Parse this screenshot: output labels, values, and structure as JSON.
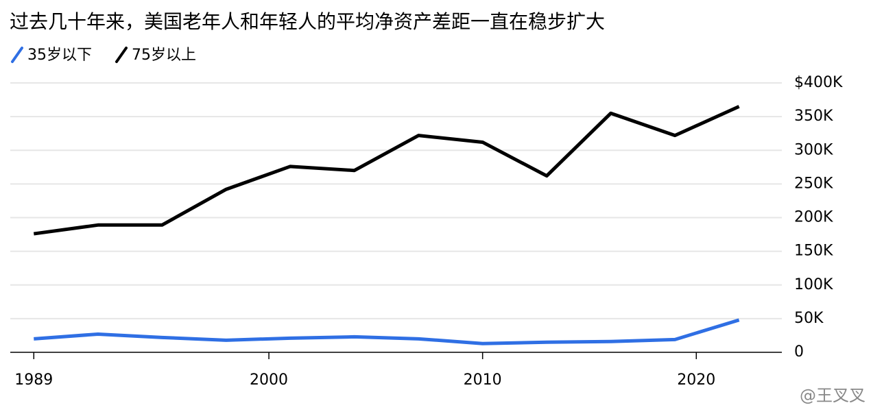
{
  "chart_data": {
    "type": "line",
    "title": "过去几十年来，美国老年人和年轻人的平均净资产差距一直在稳步扩大",
    "x": [
      1989,
      1992,
      1995,
      1998,
      2001,
      2004,
      2007,
      2010,
      2013,
      2016,
      2019,
      2022
    ],
    "series": [
      {
        "name": "35岁以下",
        "color": "#2f6fe4",
        "values": [
          20,
          27,
          22,
          18,
          21,
          23,
          20,
          13,
          15,
          16,
          19,
          48
        ]
      },
      {
        "name": "75岁以上",
        "color": "#000000",
        "values": [
          176,
          189,
          189,
          242,
          276,
          270,
          322,
          312,
          262,
          355,
          322,
          365
        ]
      }
    ],
    "xlim": [
      1987.9,
      2023.2
    ],
    "xticks": [
      1989,
      2000,
      2010,
      2020
    ],
    "ylim": [
      0,
      400
    ],
    "yticks": [
      0,
      {
        "value": 50,
        "label": "50K"
      },
      {
        "value": 100,
        "label": "100K"
      },
      {
        "value": 150,
        "label": "150K"
      },
      {
        "value": 200,
        "label": "200K"
      },
      {
        "value": 250,
        "label": "250K"
      },
      {
        "value": 300,
        "label": "300K"
      },
      {
        "value": 350,
        "label": "350K"
      },
      {
        "value": 400,
        "label": "$400K"
      }
    ],
    "grid": true,
    "legend": "top-left",
    "watermark": "@王叉叉"
  }
}
